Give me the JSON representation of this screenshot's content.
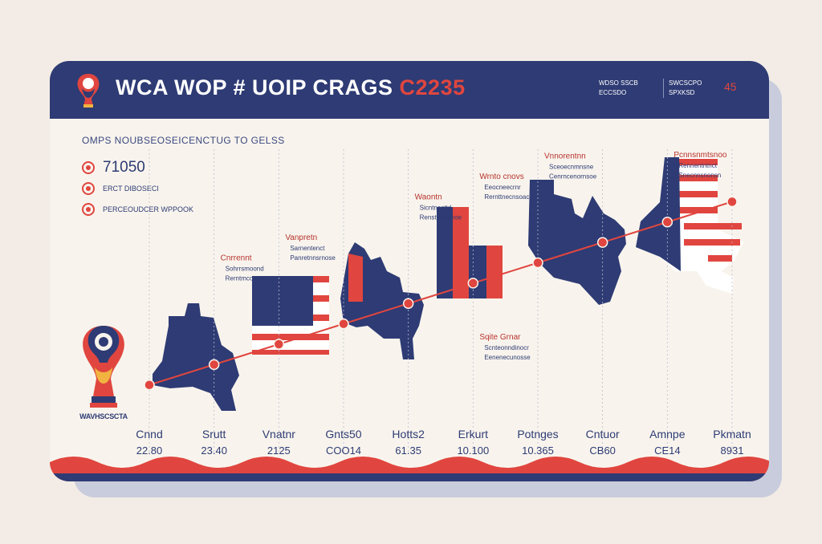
{
  "header": {
    "title": "WCA WOP # UOIP CRAGS",
    "year": "C2235",
    "meta_left": [
      "WDSO SSCB",
      "ECCSDO"
    ],
    "meta_right": [
      "SWCSCPO",
      "SPXKSD"
    ],
    "corner_number": "45"
  },
  "subtitle": "OMPS NOUBSEOSEICENCTUG TO GELSS",
  "stats": [
    {
      "big": "71050",
      "small": ""
    },
    {
      "big": "",
      "small": "ERCT DIBOSECI"
    },
    {
      "big": "",
      "small": "PERCEOUDCER WPPOOK"
    }
  ],
  "trophy": {
    "caption": "WAVHSCSCTA"
  },
  "colors": {
    "navy": "#2e3b74",
    "red": "#e0463f",
    "cream": "#f8f4ed"
  },
  "chart_data": {
    "type": "line",
    "categories": [
      "Cnnd",
      "Srutt",
      "Vnatnr",
      "Gnts50",
      "Hotts2",
      "Erkurt",
      "Potnges",
      "Cntuor",
      "Amnpe",
      "Pkmatn"
    ],
    "axis_values": [
      "22.80",
      "23.40",
      "2125",
      "COO14",
      "61.35",
      "10.100",
      "10.365",
      "CB60",
      "CE14",
      "8931"
    ],
    "values": [
      1.0,
      1.7,
      2.4,
      3.1,
      3.8,
      4.5,
      5.2,
      5.9,
      6.6,
      7.3
    ],
    "ylim": [
      0,
      8
    ],
    "annotations": [
      {
        "category": "Srutt",
        "title": "Cnrrennt",
        "lines": [
          "Sohrrsmoond",
          "Rerntmcosnrcrte"
        ]
      },
      {
        "category": "Vnatnr",
        "title": "Vanpretn",
        "lines": [
          "Sarnentenct",
          "Panretnnsrnose"
        ]
      },
      {
        "category": "Hotts2",
        "title": "Waontn",
        "lines": [
          "Sicntnesttd",
          "Rensttnsrtrnoe"
        ]
      },
      {
        "category": "Erkurt",
        "title": "Wrnto cnovs",
        "lines": [
          "Eeocneecrnr",
          "Rernttnecnsoac"
        ]
      },
      {
        "category": "Erkurt",
        "title": "Sqite Grnar",
        "lines": [
          "Scnteonndinocr",
          "Eenenecunosse"
        ]
      },
      {
        "category": "Potnges",
        "title": "Vnnorentnn",
        "lines": [
          "Sceoecnmnsne",
          "Cenrncenornsoe"
        ]
      },
      {
        "category": "Amnpe",
        "title": "Pcnnsnmtsnoo",
        "lines": [
          "Rennentntnct",
          "Snecnnsnonsn"
        ]
      }
    ]
  }
}
